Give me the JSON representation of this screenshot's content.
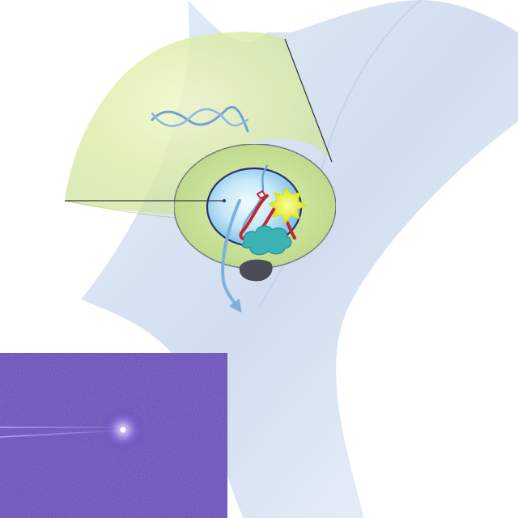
{
  "figure": {
    "labels": [],
    "inset": {
      "kind": "fluorescence-micrograph",
      "colors": {
        "background": "#3c1fa6",
        "streak": "#c9a8ff",
        "spot": "#ffffff"
      }
    },
    "colors": {
      "channel_sheet": "#c9daf0",
      "outer_shell": "#c7e27a",
      "shell_ring": "#b7d86a",
      "cavity": "#bfe6f6",
      "cavity_rim": "#27306a",
      "dna_helix": "#6fa3d6",
      "protein_red": "#c0282e",
      "protein_teal": "#3bb3b5",
      "burst_yellow": "#e8ec2a",
      "particle_gray": "#4a4d55",
      "flow_arrow": "#7fb0dc"
    },
    "icons": [
      "dna-helix-icon",
      "flow-arrow-icon",
      "burst-icon",
      "pointer-line-icon"
    ]
  }
}
